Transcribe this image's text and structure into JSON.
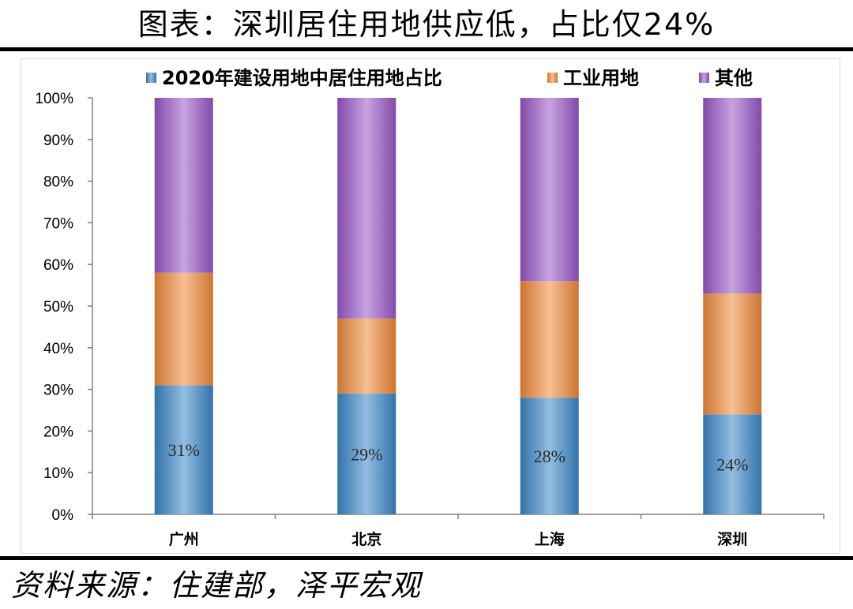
{
  "page": {
    "title": "图表：深圳居住用地供应低，占比仅24%",
    "source": "资料来源：住建部，泽平宏观"
  },
  "chart_data": {
    "type": "bar",
    "stacked": true,
    "categories": [
      "广州",
      "北京",
      "上海",
      "深圳"
    ],
    "series": [
      {
        "name": "2020年建设用地中居住用地占比",
        "values": [
          31,
          29,
          28,
          24
        ],
        "color": "#3a87c8"
      },
      {
        "name": "工业用地",
        "values": [
          27,
          18,
          28,
          29
        ],
        "color": "#f08a3a"
      },
      {
        "name": "其他",
        "values": [
          42,
          53,
          44,
          47
        ],
        "color": "#9a57c8"
      }
    ],
    "data_labels": [
      "31%",
      "29%",
      "28%",
      "24%"
    ],
    "yticks": [
      "0%",
      "10%",
      "20%",
      "30%",
      "40%",
      "50%",
      "60%",
      "70%",
      "80%",
      "90%",
      "100%"
    ],
    "ylim": [
      0,
      100
    ],
    "legend_position": "top",
    "grid": false
  }
}
